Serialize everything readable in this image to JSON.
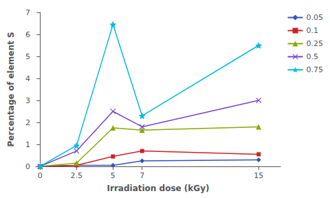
{
  "chart_data": {
    "type": "line",
    "x": [
      0,
      2.5,
      5,
      7,
      15
    ],
    "series": [
      {
        "name": "0.05",
        "values": [
          0.0,
          0.05,
          0.05,
          0.25,
          0.3
        ],
        "color": "#3355bb",
        "marker": "diamond"
      },
      {
        "name": "0.1",
        "values": [
          0.0,
          0.05,
          0.45,
          0.7,
          0.55
        ],
        "color": "#cc2222",
        "marker": "square"
      },
      {
        "name": "0.25",
        "values": [
          0.0,
          0.15,
          1.75,
          1.65,
          1.8
        ],
        "color": "#88aa00",
        "marker": "triangle"
      },
      {
        "name": "0.5",
        "values": [
          0.0,
          0.7,
          2.5,
          1.8,
          3.0
        ],
        "color": "#7744cc",
        "marker": "x"
      },
      {
        "name": "0.75",
        "values": [
          0.0,
          0.95,
          6.45,
          2.3,
          5.5
        ],
        "color": "#00bbdd",
        "marker": "star"
      }
    ],
    "xlabel": "Irradiation dose (kGy)",
    "ylabel": "Percentage of element S",
    "xlim": [
      -0.3,
      16.5
    ],
    "xticks": [
      0,
      2.5,
      5,
      7,
      15
    ],
    "ylim": [
      0,
      7
    ],
    "yticks": [
      0,
      1,
      2,
      3,
      4,
      5,
      6,
      7
    ],
    "grid": false,
    "legend": "right"
  }
}
